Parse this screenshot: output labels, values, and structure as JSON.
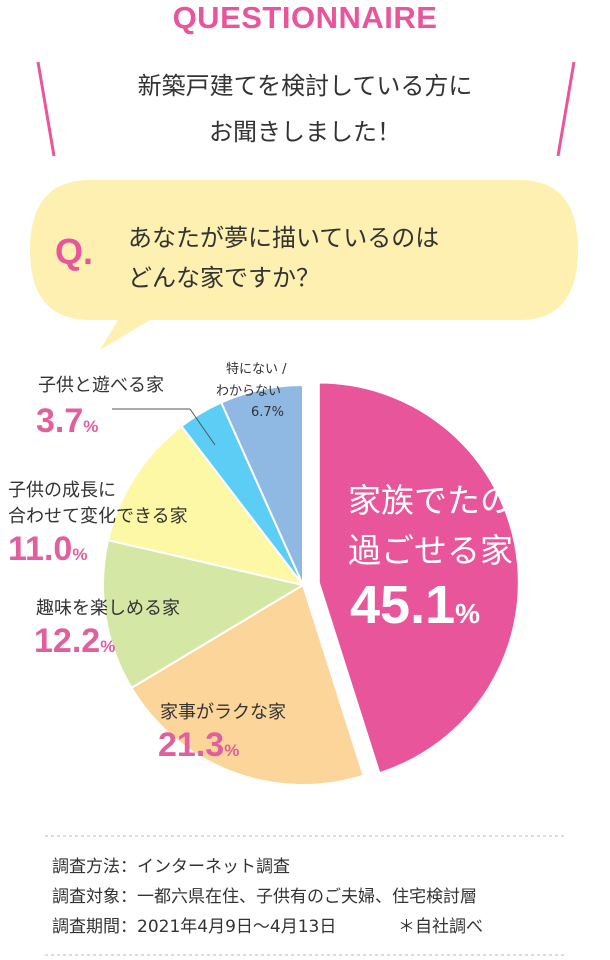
{
  "header": {
    "label": "QUESTIONNAIRE",
    "line1": "新築戸建てを検討している方に",
    "line2": "お聞きしました！"
  },
  "question": {
    "mark": "Q.",
    "line1": "あなたが夢に描いているのは",
    "line2": "どんな家ですか？"
  },
  "chart_data": {
    "type": "pie",
    "slices": [
      {
        "label": "家族でたのしく過ごせる家",
        "value": 45.1,
        "color": "#e8559a"
      },
      {
        "label": "家事がラクな家",
        "value": 21.3,
        "color": "#fbd59a"
      },
      {
        "label": "趣味を楽しめる家",
        "value": 12.2,
        "color": "#d5e7a4"
      },
      {
        "label": "子供の成長に合わせて変化できる家",
        "value": 11.0,
        "color": "#fdf8a6"
      },
      {
        "label": "子供と遊べる家",
        "value": 3.7,
        "color": "#5ccdf5"
      },
      {
        "label": "特にない／わからない",
        "value": 6.7,
        "color": "#8fb8e2"
      }
    ]
  },
  "labels": {
    "s0": {
      "line1": "家族でたのしく",
      "line2": "過ごせる家",
      "num": "45.1",
      "unit": "%"
    },
    "s1": {
      "line1": "家事がラクな家",
      "num": "21.3",
      "unit": "%"
    },
    "s2": {
      "line1": "趣味を楽しめる家",
      "num": "12.2",
      "unit": "%"
    },
    "s3": {
      "line1": "子供の成長に",
      "line2": "合わせて変化できる家",
      "num": "11.0",
      "unit": "%"
    },
    "s4": {
      "line1": "子供と遊べる家",
      "num": "3.7",
      "unit": "%"
    },
    "s5": {
      "line1": "特にない /",
      "line2": "わからない",
      "num": "6.7%"
    }
  },
  "footer": {
    "line1": "調査方法：インターネット調査",
    "line2": "調査対象：一都六県在住、子供有のご夫婦、住宅検討層",
    "line3": "調査期間：2021年4月9日〜4月13日",
    "note": "＊自社調べ"
  },
  "colors": {
    "accent": "#e8559a",
    "bubble": "#fdf0b0",
    "rule": "#bbbbbb"
  }
}
